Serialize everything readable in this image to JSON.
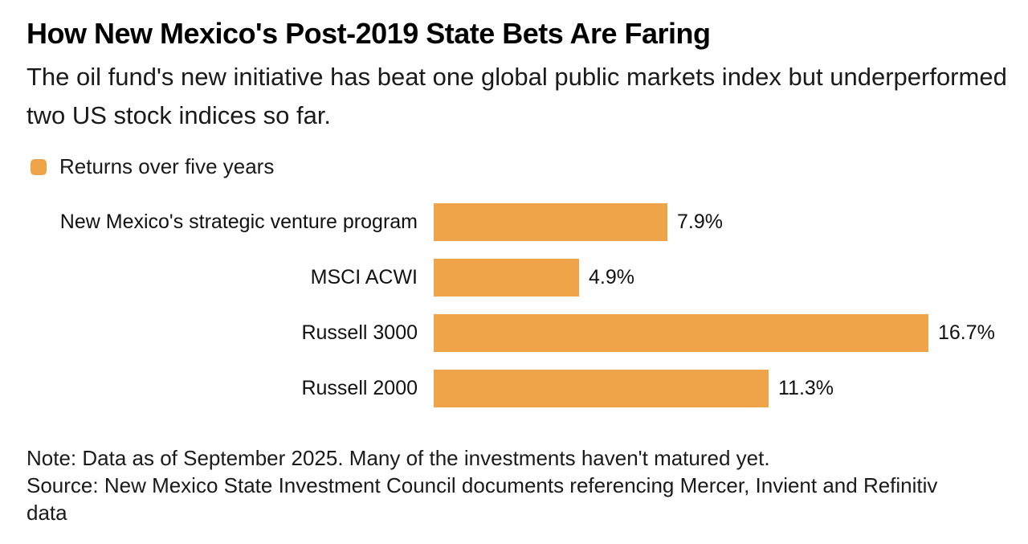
{
  "header": {
    "title": "How New Mexico's Post-2019 State Bets Are Faring",
    "subtitle": "The oil fund's new initiative has beat one global public markets index but underperformed two US stock indices so far."
  },
  "legend": {
    "label": "Returns over five years"
  },
  "colors": {
    "bar_orange": "#F0A44A",
    "text_black": "#000000"
  },
  "chart_data": {
    "type": "bar",
    "orientation": "horizontal",
    "title": "How New Mexico's Post-2019 State Bets Are Faring",
    "subtitle": "The oil fund's new initiative has beat one global public markets index but underperformed two US stock indices so far.",
    "series_name": "Returns over five years",
    "categories": [
      "New Mexico's strategic venture program",
      "MSCI ACWI",
      "Russell 3000",
      "Russell 2000"
    ],
    "values": [
      7.9,
      4.9,
      16.7,
      11.3
    ],
    "value_labels": [
      "7.9%",
      "4.9%",
      "16.7%",
      "11.3%"
    ],
    "xlabel": "",
    "ylabel": "",
    "xlim": [
      0,
      16.7
    ],
    "grid": false,
    "legend_position": "top-left",
    "bar_color": "#F0A44A"
  },
  "footer": {
    "note": "Note: Data as of September 2025. Many of the investments haven't matured yet.",
    "source": "Source: New Mexico State Investment Council documents referencing Mercer, Invient and Refinitiv data"
  }
}
